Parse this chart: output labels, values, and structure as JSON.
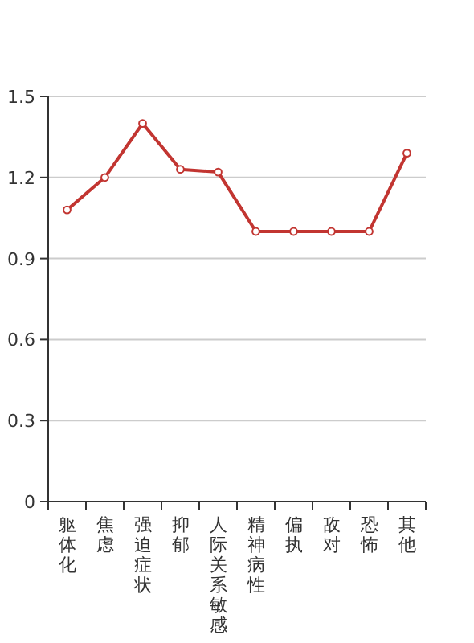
{
  "chart_data": {
    "type": "line",
    "categories": [
      "躯体化",
      "焦虑",
      "强迫症状",
      "抑郁",
      "人际关系敏感",
      "精神病性",
      "偏执",
      "敌对",
      "恐怖",
      "其他"
    ],
    "series": [
      {
        "color": "#c23531",
        "values": [
          1.08,
          1.2,
          1.4,
          1.23,
          1.22,
          1.0,
          1.0,
          1.0,
          1.0,
          1.29
        ]
      }
    ],
    "ylim": [
      0,
      1.5
    ],
    "yticks": [
      {
        "value": 0,
        "label": "0"
      },
      {
        "value": 0.3,
        "label": "0.3"
      },
      {
        "value": 0.6,
        "label": "0.6"
      },
      {
        "value": 0.9,
        "label": "0.9"
      },
      {
        "value": 1.2,
        "label": "1.2"
      },
      {
        "value": 1.5,
        "label": "1.5"
      }
    ],
    "grid": "y",
    "marker": "circle"
  }
}
